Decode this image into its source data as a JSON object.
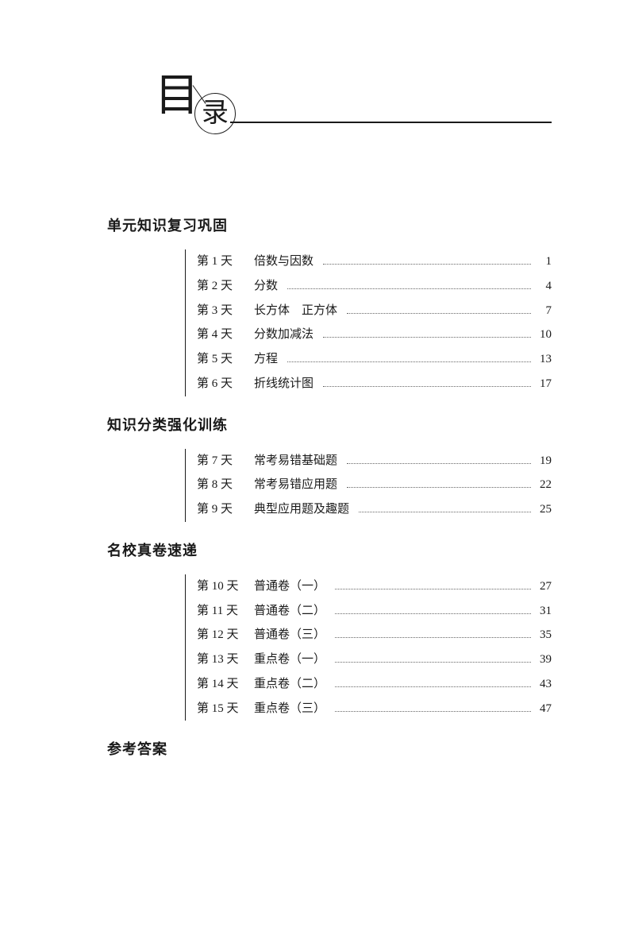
{
  "header": {
    "char1": "目",
    "char2": "录"
  },
  "sections": [
    {
      "title": "单元知识复习巩固",
      "items": [
        {
          "day": "第 1 天",
          "title": "倍数与因数",
          "page": "1"
        },
        {
          "day": "第 2 天",
          "title": "分数",
          "page": "4"
        },
        {
          "day": "第 3 天",
          "title": "长方体　正方体",
          "page": "7"
        },
        {
          "day": "第 4 天",
          "title": "分数加减法",
          "page": "10"
        },
        {
          "day": "第 5 天",
          "title": "方程",
          "page": "13"
        },
        {
          "day": "第 6 天",
          "title": "折线统计图",
          "page": "17"
        }
      ]
    },
    {
      "title": "知识分类强化训练",
      "items": [
        {
          "day": "第 7 天",
          "title": "常考易错基础题",
          "page": "19"
        },
        {
          "day": "第 8 天",
          "title": "常考易错应用题",
          "page": "22"
        },
        {
          "day": "第 9 天",
          "title": "典型应用题及趣题",
          "page": "25"
        }
      ]
    },
    {
      "title": "名校真卷速递",
      "items": [
        {
          "day": "第 10 天",
          "title": "普通卷（一）",
          "page": "27"
        },
        {
          "day": "第 11 天",
          "title": "普通卷（二）",
          "page": "31"
        },
        {
          "day": "第 12 天",
          "title": "普通卷（三）",
          "page": "35"
        },
        {
          "day": "第 13 天",
          "title": "重点卷（一）",
          "page": "39"
        },
        {
          "day": "第 14 天",
          "title": "重点卷（二）",
          "page": "43"
        },
        {
          "day": "第 15 天",
          "title": "重点卷（三）",
          "page": "47"
        }
      ]
    }
  ],
  "answers_label": "参考答案",
  "colors": {
    "text": "#1a1a1a",
    "background": "#ffffff",
    "dots": "#666666"
  },
  "typography": {
    "section_title_fontsize": 18,
    "row_fontsize": 15,
    "header_char1_fontsize": 56,
    "header_char2_fontsize": 34
  }
}
